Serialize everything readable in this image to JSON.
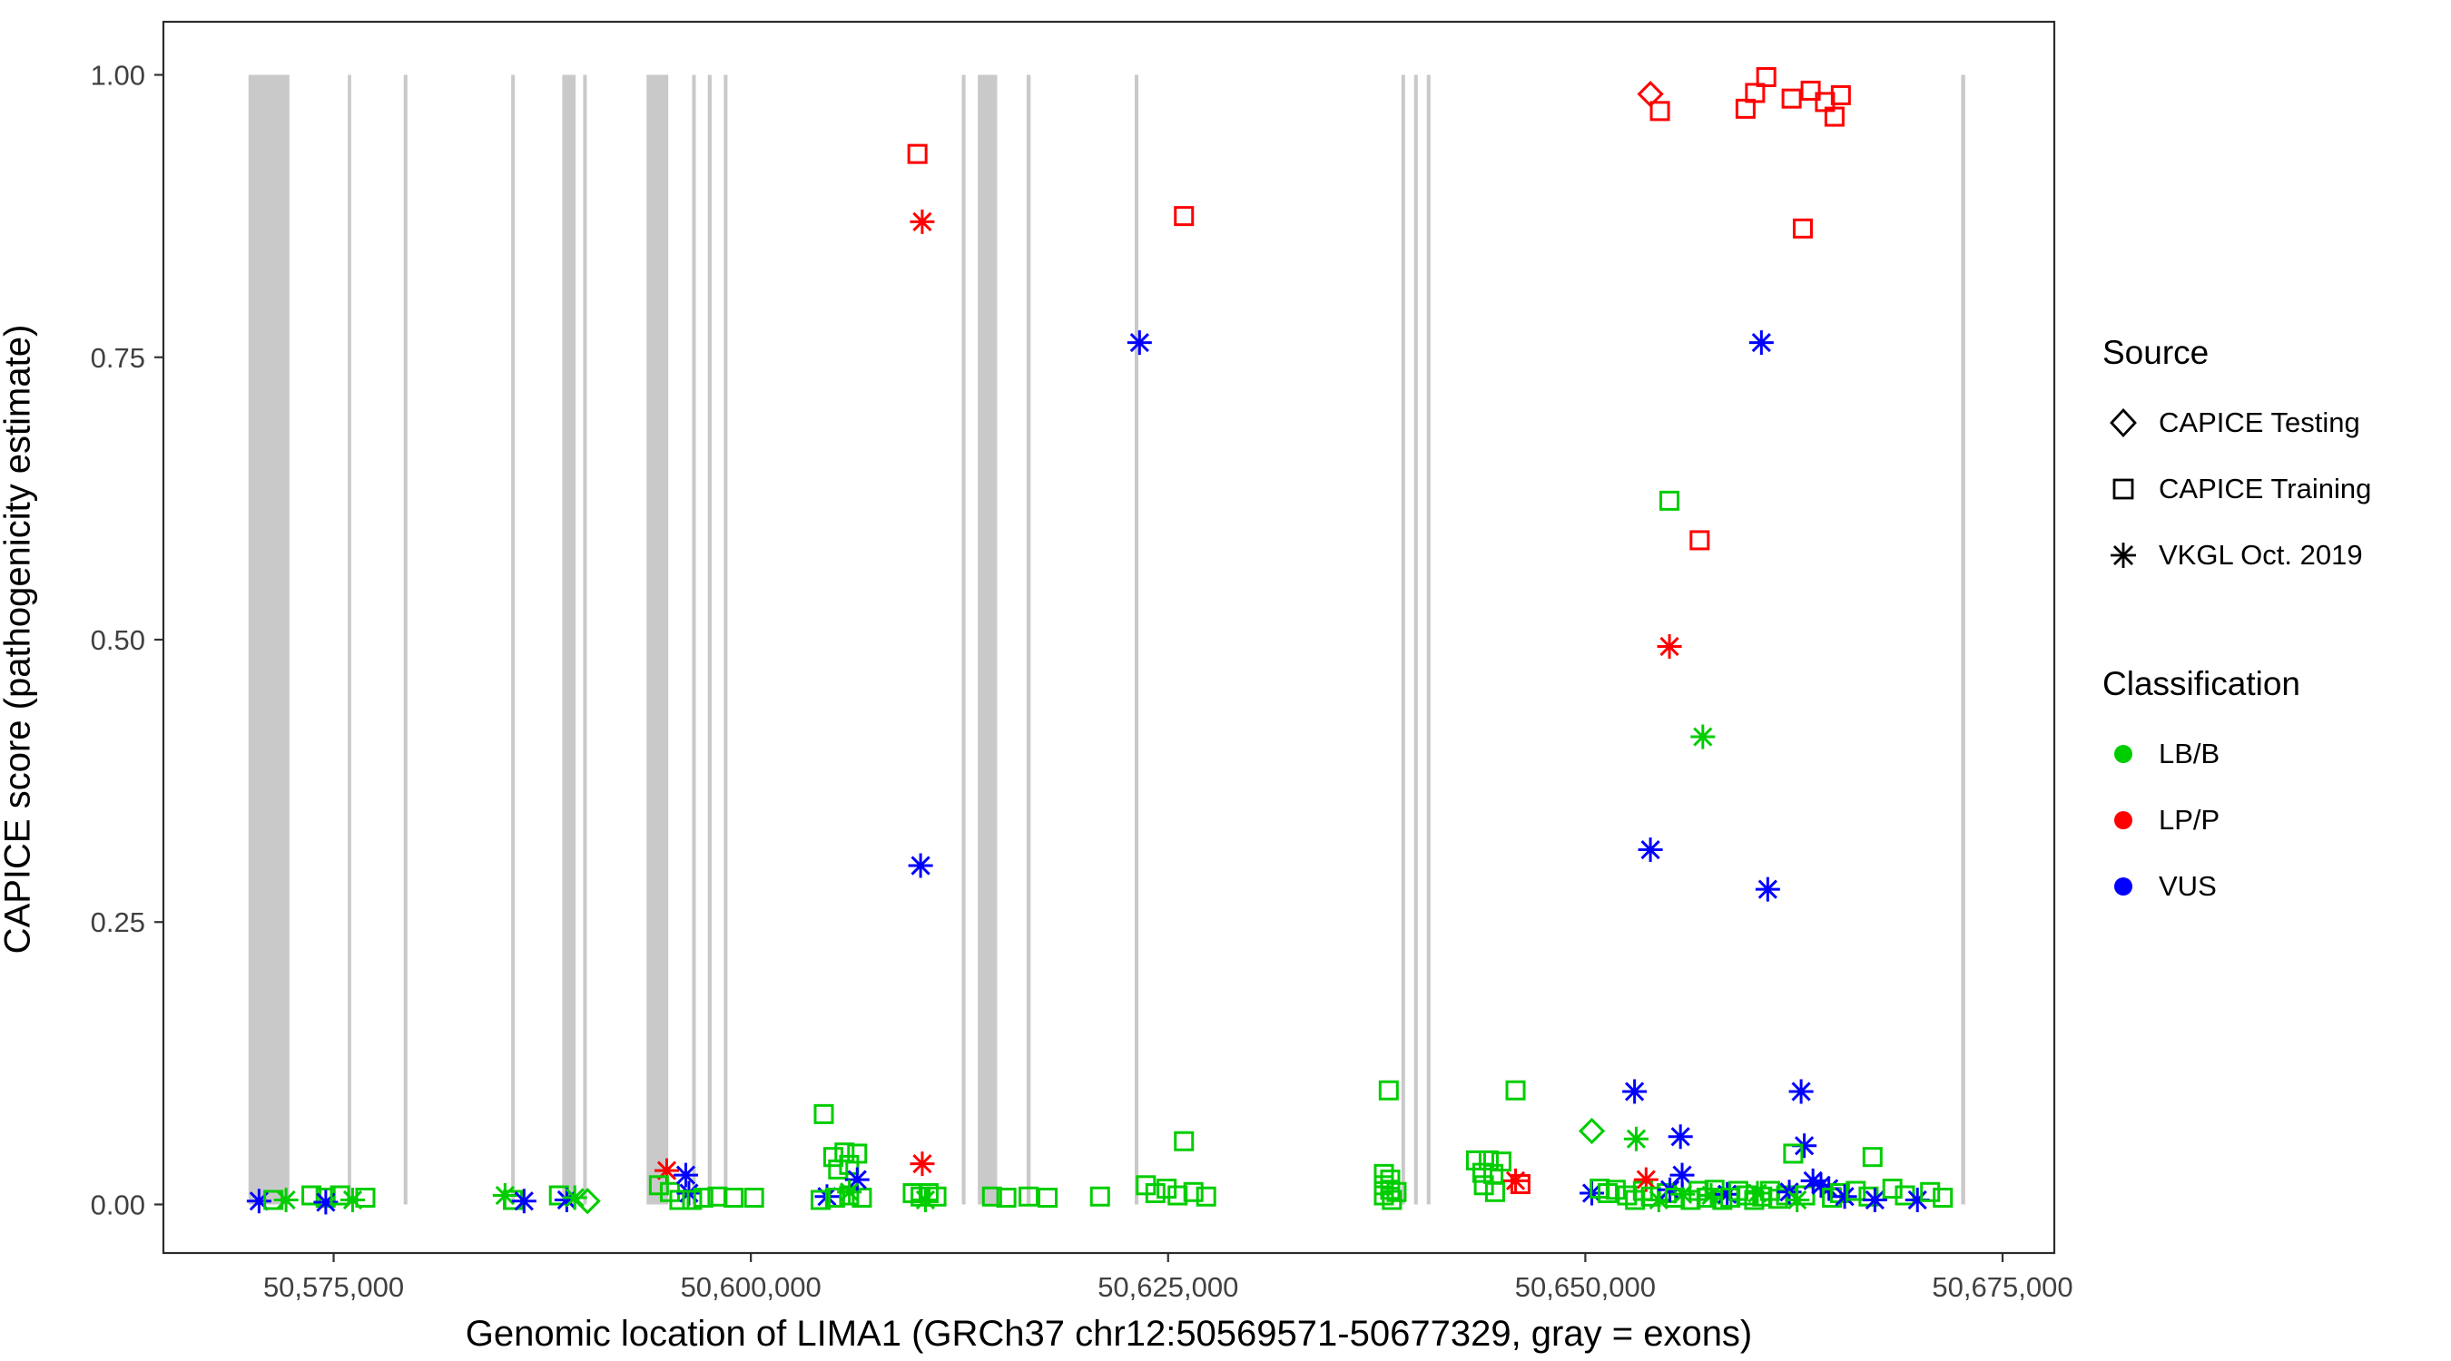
{
  "chart_data": {
    "type": "scatter",
    "title": "",
    "xlabel": "Genomic location of LIMA1 (GRCh37 chr12:50569571-50677329, gray = exons)",
    "ylabel": "CAPICE score (pathogenicity estimate)",
    "x_ticks": [
      {
        "value": 50575000,
        "label": "50,575,000"
      },
      {
        "value": 50600000,
        "label": "50,600,000"
      },
      {
        "value": 50625000,
        "label": "50,625,000"
      },
      {
        "value": 50650000,
        "label": "50,650,000"
      },
      {
        "value": 50675000,
        "label": "50,675,000"
      }
    ],
    "y_ticks": [
      {
        "value": 0.0,
        "label": "0.00"
      },
      {
        "value": 0.25,
        "label": "0.25"
      },
      {
        "value": 0.5,
        "label": "0.50"
      },
      {
        "value": 0.75,
        "label": "0.75"
      },
      {
        "value": 1.0,
        "label": "1.00"
      }
    ],
    "xlim": [
      50564800,
      50678100
    ],
    "ylim": [
      -0.043,
      1.047
    ],
    "grid": false,
    "exon_color": "#C9C9C9",
    "exon_note": "gray vertical bands = exons, drawn from score 0.0 to 1.0",
    "exons": [
      [
        50569900,
        50572350
      ],
      [
        50575850,
        50576050
      ],
      [
        50579200,
        50579420
      ],
      [
        50585640,
        50585860
      ],
      [
        50588700,
        50589500
      ],
      [
        50589950,
        50590170
      ],
      [
        50593750,
        50595050
      ],
      [
        50596480,
        50596700
      ],
      [
        50597420,
        50597650
      ],
      [
        50598380,
        50598600
      ],
      [
        50612640,
        50612860
      ],
      [
        50613600,
        50614760
      ],
      [
        50616520,
        50616760
      ],
      [
        50623000,
        50623220
      ],
      [
        50638980,
        50639200
      ],
      [
        50639740,
        50639960
      ],
      [
        50640500,
        50640720
      ],
      [
        50672520,
        50672760
      ]
    ],
    "colors": {
      "LB/B": "#00CD00",
      "LP/P": "#FF0000",
      "VUS": "#0000FF"
    },
    "shape_meaning": {
      "diamond": "CAPICE Testing",
      "square": "CAPICE Training",
      "asterisk": "VKGL Oct. 2019"
    },
    "points_format": [
      "genomic_position",
      "capice_score",
      "shape",
      "classification"
    ],
    "points": [
      [
        50609982,
        0.93,
        "square",
        "LP/P"
      ],
      [
        50610267,
        0.87,
        "asterisk",
        "LP/P"
      ],
      [
        50625950,
        0.875,
        "square",
        "LP/P"
      ],
      [
        50623290,
        0.763,
        "asterisk",
        "VUS"
      ],
      [
        50610170,
        0.3,
        "asterisk",
        "VUS"
      ],
      [
        50653900,
        0.983,
        "diamond",
        "LP/P"
      ],
      [
        50654470,
        0.968,
        "square",
        "LP/P"
      ],
      [
        50659600,
        0.97,
        "square",
        "LP/P"
      ],
      [
        50660170,
        0.984,
        "square",
        "LP/P"
      ],
      [
        50660840,
        0.998,
        "square",
        "LP/P"
      ],
      [
        50662360,
        0.979,
        "square",
        "LP/P"
      ],
      [
        50663500,
        0.986,
        "square",
        "LP/P"
      ],
      [
        50664360,
        0.976,
        "square",
        "LP/P"
      ],
      [
        50664930,
        0.963,
        "square",
        "LP/P"
      ],
      [
        50665310,
        0.982,
        "square",
        "LP/P"
      ],
      [
        50663030,
        0.864,
        "square",
        "LP/P"
      ],
      [
        50660550,
        0.763,
        "asterisk",
        "VUS"
      ],
      [
        50655040,
        0.623,
        "square",
        "LB/B"
      ],
      [
        50656850,
        0.588,
        "square",
        "LP/P"
      ],
      [
        50655040,
        0.494,
        "asterisk",
        "LP/P"
      ],
      [
        50657040,
        0.414,
        "asterisk",
        "LB/B"
      ],
      [
        50653900,
        0.314,
        "asterisk",
        "VUS"
      ],
      [
        50660930,
        0.279,
        "asterisk",
        "VUS"
      ],
      [
        50638220,
        0.101,
        "square",
        "LB/B"
      ],
      [
        50645820,
        0.101,
        "square",
        "LB/B"
      ],
      [
        50652950,
        0.1,
        "asterisk",
        "VUS"
      ],
      [
        50662930,
        0.1,
        "asterisk",
        "VUS"
      ],
      [
        50604370,
        0.08,
        "square",
        "LB/B"
      ],
      [
        50650390,
        0.065,
        "diamond",
        "LB/B"
      ],
      [
        50653050,
        0.058,
        "asterisk",
        "LB/B"
      ],
      [
        50655700,
        0.06,
        "asterisk",
        "VUS"
      ],
      [
        50663120,
        0.052,
        "asterisk",
        "VUS"
      ],
      [
        50625950,
        0.056,
        "square",
        "LB/B"
      ],
      [
        50662455,
        0.045,
        "square",
        "LB/B"
      ],
      [
        50667210,
        0.042,
        "square",
        "LB/B"
      ],
      [
        50570530,
        0.003,
        "asterisk",
        "VUS"
      ],
      [
        50571390,
        0.004,
        "square",
        "LB/B"
      ],
      [
        50572150,
        0.004,
        "asterisk",
        "LB/B"
      ],
      [
        50573670,
        0.008,
        "square",
        "LB/B"
      ],
      [
        50574520,
        0.006,
        "square",
        "LB/B"
      ],
      [
        50574530,
        0.002,
        "asterisk",
        "VUS"
      ],
      [
        50575380,
        0.008,
        "square",
        "LB/B"
      ],
      [
        50576140,
        0.004,
        "asterisk",
        "LB/B"
      ],
      [
        50576900,
        0.006,
        "square",
        "LB/B"
      ],
      [
        50585270,
        0.008,
        "asterisk",
        "LB/B"
      ],
      [
        50585740,
        0.004,
        "square",
        "LB/B"
      ],
      [
        50586410,
        0.003,
        "asterisk",
        "VUS"
      ],
      [
        50588500,
        0.008,
        "square",
        "LB/B"
      ],
      [
        50588970,
        0.004,
        "asterisk",
        "VUS"
      ],
      [
        50589450,
        0.006,
        "asterisk",
        "LB/B"
      ],
      [
        50590210,
        0.003,
        "diamond",
        "LB/B"
      ],
      [
        50594960,
        0.03,
        "asterisk",
        "LP/P"
      ],
      [
        50594490,
        0.017,
        "square",
        "LB/B"
      ],
      [
        50595150,
        0.011,
        "square",
        "LB/B"
      ],
      [
        50596100,
        0.026,
        "asterisk",
        "VUS"
      ],
      [
        50596290,
        0.01,
        "asterisk",
        "VUS"
      ],
      [
        50595720,
        0.004,
        "square",
        "LB/B"
      ],
      [
        50596480,
        0.004,
        "square",
        "LB/B"
      ],
      [
        50597150,
        0.006,
        "square",
        "LB/B"
      ],
      [
        50598000,
        0.007,
        "square",
        "LB/B"
      ],
      [
        50598960,
        0.006,
        "square",
        "LB/B"
      ],
      [
        50600190,
        0.006,
        "square",
        "LB/B"
      ],
      [
        50604940,
        0.042,
        "square",
        "LB/B"
      ],
      [
        50605610,
        0.046,
        "square",
        "LB/B"
      ],
      [
        50605890,
        0.035,
        "square",
        "LB/B"
      ],
      [
        50605230,
        0.031,
        "square",
        "LB/B"
      ],
      [
        50606370,
        0.045,
        "square",
        "LB/B"
      ],
      [
        50604560,
        0.007,
        "asterisk",
        "VUS"
      ],
      [
        50604180,
        0.004,
        "square",
        "LB/B"
      ],
      [
        50605040,
        0.006,
        "square",
        "LB/B"
      ],
      [
        50605890,
        0.008,
        "square",
        "LB/B"
      ],
      [
        50606650,
        0.006,
        "square",
        "LB/B"
      ],
      [
        50606370,
        0.022,
        "asterisk",
        "VUS"
      ],
      [
        50605900,
        0.011,
        "asterisk",
        "LB/B"
      ],
      [
        50609700,
        0.01,
        "square",
        "LB/B"
      ],
      [
        50610170,
        0.007,
        "square",
        "LB/B"
      ],
      [
        50610650,
        0.01,
        "square",
        "LB/B"
      ],
      [
        50611120,
        0.007,
        "square",
        "LB/B"
      ],
      [
        50610270,
        0.036,
        "asterisk",
        "LP/P"
      ],
      [
        50610460,
        0.004,
        "asterisk",
        "LB/B"
      ],
      [
        50614450,
        0.007,
        "square",
        "LB/B"
      ],
      [
        50615310,
        0.006,
        "square",
        "LB/B"
      ],
      [
        50616640,
        0.007,
        "square",
        "LB/B"
      ],
      [
        50617780,
        0.006,
        "square",
        "LB/B"
      ],
      [
        50620920,
        0.007,
        "square",
        "LB/B"
      ],
      [
        50623670,
        0.017,
        "square",
        "LB/B"
      ],
      [
        50624240,
        0.01,
        "square",
        "LB/B"
      ],
      [
        50624910,
        0.014,
        "square",
        "LB/B"
      ],
      [
        50625570,
        0.008,
        "square",
        "LB/B"
      ],
      [
        50626520,
        0.011,
        "square",
        "LB/B"
      ],
      [
        50627280,
        0.007,
        "square",
        "LB/B"
      ],
      [
        50637930,
        0.027,
        "square",
        "LB/B"
      ],
      [
        50638310,
        0.022,
        "square",
        "LB/B"
      ],
      [
        50637930,
        0.017,
        "square",
        "LB/B"
      ],
      [
        50638310,
        0.013,
        "square",
        "LB/B"
      ],
      [
        50637930,
        0.008,
        "square",
        "LB/B"
      ],
      [
        50638410,
        0.004,
        "square",
        "LB/B"
      ],
      [
        50638690,
        0.011,
        "square",
        "LB/B"
      ],
      [
        50643450,
        0.039,
        "square",
        "LB/B"
      ],
      [
        50644210,
        0.039,
        "square",
        "LB/B"
      ],
      [
        50644970,
        0.038,
        "square",
        "LB/B"
      ],
      [
        50643830,
        0.028,
        "square",
        "LB/B"
      ],
      [
        50644490,
        0.027,
        "square",
        "LB/B"
      ],
      [
        50643920,
        0.017,
        "square",
        "LB/B"
      ],
      [
        50644590,
        0.011,
        "square",
        "LB/B"
      ],
      [
        50645820,
        0.021,
        "asterisk",
        "LP/P"
      ],
      [
        50646110,
        0.018,
        "square",
        "LP/P"
      ],
      [
        50650390,
        0.01,
        "asterisk",
        "VUS"
      ],
      [
        50650860,
        0.014,
        "square",
        "LB/B"
      ],
      [
        50651340,
        0.01,
        "square",
        "LB/B"
      ],
      [
        50651820,
        0.013,
        "square",
        "LB/B"
      ],
      [
        50652500,
        0.008,
        "square",
        "LB/B"
      ],
      [
        50652980,
        0.004,
        "square",
        "LB/B"
      ],
      [
        50653450,
        0.012,
        "square",
        "LB/B"
      ],
      [
        50653640,
        0.022,
        "asterisk",
        "LP/P"
      ],
      [
        50653930,
        0.007,
        "square",
        "LB/B"
      ],
      [
        50654400,
        0.004,
        "asterisk",
        "LB/B"
      ],
      [
        50654880,
        0.01,
        "square",
        "LB/B"
      ],
      [
        50655070,
        0.013,
        "asterisk",
        "VUS"
      ],
      [
        50655360,
        0.006,
        "square",
        "LB/B"
      ],
      [
        50655830,
        0.009,
        "asterisk",
        "LB/B"
      ],
      [
        50656310,
        0.004,
        "square",
        "LB/B"
      ],
      [
        50655800,
        0.026,
        "asterisk",
        "VUS"
      ],
      [
        50656790,
        0.012,
        "square",
        "LB/B"
      ],
      [
        50657260,
        0.006,
        "square",
        "LB/B"
      ],
      [
        50657540,
        0.008,
        "asterisk",
        "LB/B"
      ],
      [
        50657740,
        0.013,
        "square",
        "LB/B"
      ],
      [
        50658210,
        0.004,
        "square",
        "LB/B"
      ],
      [
        50658500,
        0.009,
        "asterisk",
        "VUS"
      ],
      [
        50658690,
        0.006,
        "square",
        "LB/B"
      ],
      [
        50659170,
        0.012,
        "square",
        "LB/B"
      ],
      [
        50659640,
        0.008,
        "square",
        "LB/B"
      ],
      [
        50660120,
        0.004,
        "square",
        "LB/B"
      ],
      [
        50660310,
        0.01,
        "asterisk",
        "LB/B"
      ],
      [
        50660600,
        0.007,
        "square",
        "LB/B"
      ],
      [
        50661070,
        0.012,
        "square",
        "LB/B"
      ],
      [
        50661550,
        0.005,
        "square",
        "LB/B"
      ],
      [
        50662030,
        0.008,
        "square",
        "LB/B"
      ],
      [
        50662220,
        0.011,
        "asterisk",
        "VUS"
      ],
      [
        50662690,
        0.004,
        "asterisk",
        "LB/B"
      ],
      [
        50663170,
        0.008,
        "square",
        "LB/B"
      ],
      [
        50663640,
        0.021,
        "asterisk",
        "VUS"
      ],
      [
        50664120,
        0.017,
        "asterisk",
        "VUS"
      ],
      [
        50664590,
        0.014,
        "asterisk",
        "VUS"
      ],
      [
        50664780,
        0.006,
        "square",
        "LB/B"
      ],
      [
        50665260,
        0.01,
        "square",
        "LB/B"
      ],
      [
        50665540,
        0.007,
        "asterisk",
        "VUS"
      ],
      [
        50666200,
        0.012,
        "square",
        "LB/B"
      ],
      [
        50666970,
        0.007,
        "square",
        "LB/B"
      ],
      [
        50667350,
        0.004,
        "asterisk",
        "VUS"
      ],
      [
        50668400,
        0.014,
        "square",
        "LB/B"
      ],
      [
        50669150,
        0.008,
        "square",
        "LB/B"
      ],
      [
        50669900,
        0.004,
        "asterisk",
        "VUS"
      ],
      [
        50670660,
        0.011,
        "square",
        "LB/B"
      ],
      [
        50671420,
        0.006,
        "square",
        "LB/B"
      ]
    ],
    "legend_position": "right"
  },
  "legend": {
    "source": {
      "title": "Source",
      "items": [
        {
          "label": "CAPICE Testing",
          "shape": "diamond"
        },
        {
          "label": "CAPICE Training",
          "shape": "square"
        },
        {
          "label": "VKGL Oct. 2019",
          "shape": "asterisk"
        }
      ]
    },
    "classification": {
      "title": "Classification",
      "items": [
        {
          "label": "LB/B",
          "color": "#00CD00"
        },
        {
          "label": "LP/P",
          "color": "#FF0000"
        },
        {
          "label": "VUS",
          "color": "#0000FF"
        }
      ]
    }
  }
}
